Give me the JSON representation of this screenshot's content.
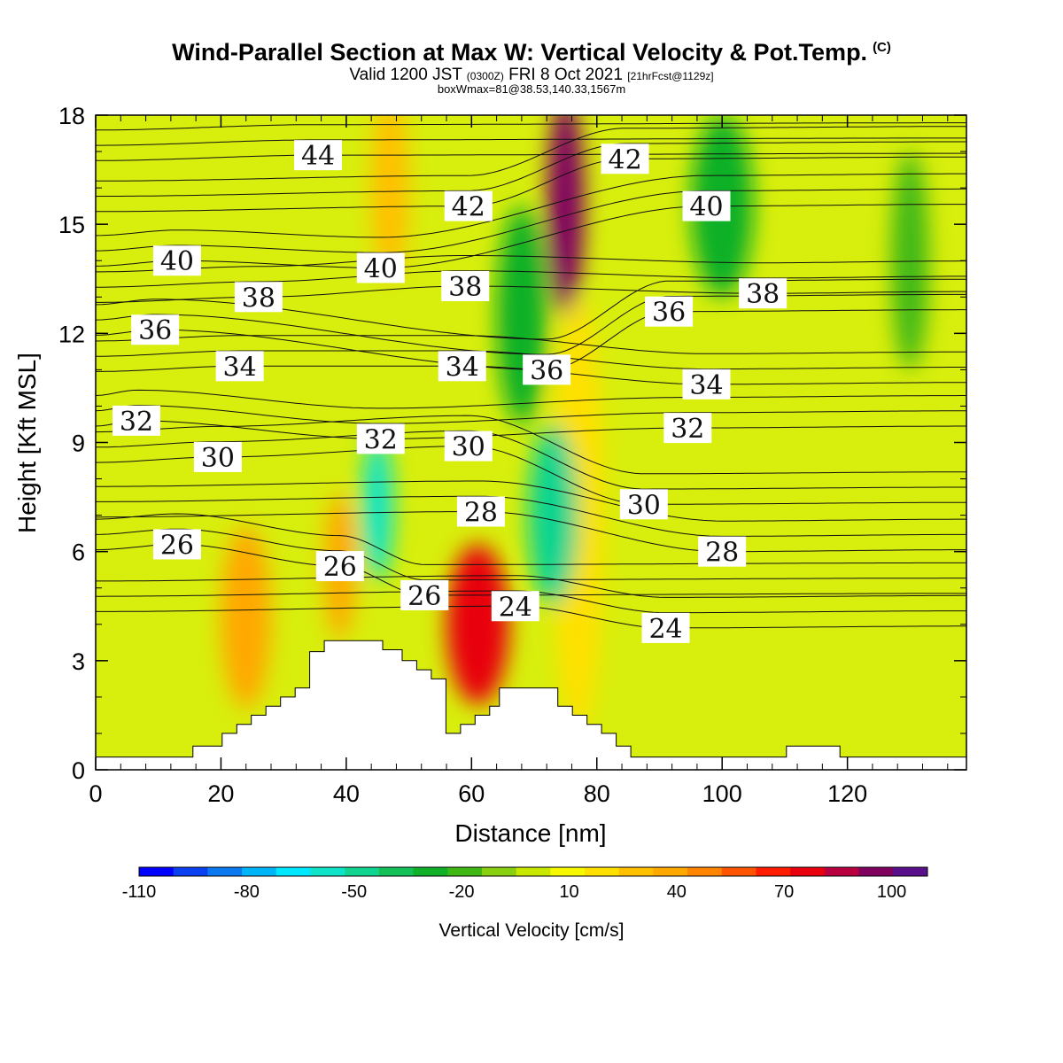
{
  "title": "Wind-Parallel Section at Max W: Vertical Velocity & Pot.Temp.",
  "title_mark": "(C)",
  "subtitle_main": "Valid 1200 JST",
  "subtitle_utc": "(0300Z)",
  "subtitle_date": "FRI 8 Oct 2021",
  "subtitle_fcst": "[21hrFcst@1129z]",
  "subtitle2": "boxWmax=81@38.53,140.33,1567m",
  "chart_data": {
    "type": "heatmap",
    "xlabel": "Distance [nm]",
    "ylabel": "Height [Kft MSL]",
    "xlim": [
      0,
      139
    ],
    "ylim": [
      0,
      18
    ],
    "x_ticks": [
      0,
      20,
      40,
      60,
      80,
      100,
      120
    ],
    "y_ticks": [
      0,
      3,
      6,
      9,
      12,
      15,
      18
    ],
    "grid": false,
    "colorbar": {
      "label": "Vertical Velocity [cm/s]",
      "placement": "bottom",
      "tick_labels": [
        -110,
        -80,
        -50,
        -20,
        10,
        40,
        70,
        100
      ],
      "levels": [
        -110,
        -100,
        -90,
        -80,
        -70,
        -60,
        -50,
        -40,
        -30,
        -20,
        -10,
        0,
        10,
        20,
        30,
        40,
        50,
        60,
        70,
        80,
        90,
        100,
        110
      ],
      "colors": [
        "#0000ff",
        "#0a40f0",
        "#0a78f0",
        "#00b4f8",
        "#00e8ff",
        "#10e4c8",
        "#10d490",
        "#14c058",
        "#10b028",
        "#40b814",
        "#88d010",
        "#c8e800",
        "#f8f800",
        "#ffe000",
        "#ffc000",
        "#ffa800",
        "#ff8400",
        "#ff5400",
        "#ff1c00",
        "#e80010",
        "#b80040",
        "#800060",
        "#5a108c"
      ]
    },
    "theta_contours": {
      "series_label": "Pot.Temp.",
      "levels": [
        24,
        26,
        28,
        30,
        32,
        34,
        36,
        38,
        40,
        42,
        44
      ],
      "labels": [
        {
          "text": "44",
          "x": 35.5,
          "y": 16.9
        },
        {
          "text": "42",
          "x": 59.5,
          "y": 15.5
        },
        {
          "text": "42",
          "x": 84.5,
          "y": 16.8
        },
        {
          "text": "40",
          "x": 13.0,
          "y": 14.0
        },
        {
          "text": "40",
          "x": 45.5,
          "y": 13.8
        },
        {
          "text": "40",
          "x": 97.5,
          "y": 15.5
        },
        {
          "text": "38",
          "x": 26.0,
          "y": 13.0
        },
        {
          "text": "38",
          "x": 59.0,
          "y": 13.3
        },
        {
          "text": "38",
          "x": 106.5,
          "y": 13.1
        },
        {
          "text": "36",
          "x": 9.5,
          "y": 12.1
        },
        {
          "text": "36",
          "x": 72.0,
          "y": 11.0
        },
        {
          "text": "36",
          "x": 91.5,
          "y": 12.6
        },
        {
          "text": "34",
          "x": 23.0,
          "y": 11.1
        },
        {
          "text": "34",
          "x": 58.5,
          "y": 11.1
        },
        {
          "text": "34",
          "x": 97.5,
          "y": 10.6
        },
        {
          "text": "32",
          "x": 6.5,
          "y": 9.6
        },
        {
          "text": "32",
          "x": 45.5,
          "y": 9.1
        },
        {
          "text": "32",
          "x": 94.5,
          "y": 9.4
        },
        {
          "text": "30",
          "x": 19.5,
          "y": 8.6
        },
        {
          "text": "30",
          "x": 59.5,
          "y": 8.9
        },
        {
          "text": "30",
          "x": 87.5,
          "y": 7.3
        },
        {
          "text": "28",
          "x": 61.5,
          "y": 7.1
        },
        {
          "text": "28",
          "x": 100.0,
          "y": 6.0
        },
        {
          "text": "26",
          "x": 13.0,
          "y": 6.2
        },
        {
          "text": "26",
          "x": 39.0,
          "y": 5.6
        },
        {
          "text": "26",
          "x": 52.5,
          "y": 4.8
        },
        {
          "text": "24",
          "x": 67.0,
          "y": 4.5
        },
        {
          "text": "24",
          "x": 91.0,
          "y": 3.9
        }
      ]
    },
    "terrain_heights": [
      0.35,
      0.35,
      0.35,
      0.35,
      0.35,
      0.35,
      0.35,
      0.35,
      0.35,
      0.35,
      0.35,
      0.35,
      0.35,
      0.35,
      0.35,
      0.35,
      0.35,
      0.35,
      0.35,
      0.35,
      0.65,
      0.65,
      0.65,
      0.65,
      0.65,
      0.65,
      1.0,
      1.0,
      1.0,
      1.25,
      1.25,
      1.25,
      1.5,
      1.5,
      1.5,
      1.75,
      1.75,
      1.75,
      2.0,
      2.0,
      2.0,
      2.25,
      2.25,
      2.25,
      3.25,
      3.25,
      3.25,
      3.55,
      3.55,
      3.55,
      3.55,
      3.55,
      3.55,
      3.55,
      3.55,
      3.55,
      3.55,
      3.55,
      3.55,
      3.3,
      3.3,
      3.3,
      3.3,
      3.0,
      3.0,
      3.0,
      2.75,
      2.75,
      2.75,
      2.5,
      2.5,
      2.5,
      1.0,
      1.0,
      1.0,
      1.25,
      1.25,
      1.25,
      1.5,
      1.5,
      1.5,
      1.75,
      1.75,
      2.25,
      2.25,
      2.25,
      2.25,
      2.25,
      2.25,
      2.25,
      2.25,
      2.25,
      2.25,
      2.25,
      2.25,
      1.75,
      1.75,
      1.75,
      1.5,
      1.5,
      1.5,
      1.25,
      1.25,
      1.25,
      1.0,
      1.0,
      1.0,
      0.65,
      0.65,
      0.65,
      0.35,
      0.35,
      0.35,
      0.35,
      0.35,
      0.35,
      0.35,
      0.35,
      0.35,
      0.35,
      0.35,
      0.35,
      0.35,
      0.35,
      0.35,
      0.35,
      0.35,
      0.35,
      0.35,
      0.35,
      0.35,
      0.35,
      0.35,
      0.35,
      0.35,
      0.35,
      0.35,
      0.35,
      0.35,
      0.35,
      0.35,
      0.35,
      0.65,
      0.65,
      0.65,
      0.65,
      0.65,
      0.65,
      0.65,
      0.65,
      0.65,
      0.65,
      0.65,
      0.35,
      0.35,
      0.35,
      0.35,
      0.35,
      0.35,
      0.35,
      0.35,
      0.35,
      0.35,
      0.35,
      0.35,
      0.35,
      0.35,
      0.35,
      0.35,
      0.35,
      0.35,
      0.35,
      0.35,
      0.35,
      0.35,
      0.35,
      0.35,
      0.35,
      0.35
    ],
    "vertical_velocity_features": [
      {
        "kind": "updraft",
        "x": 24,
        "y": 4.2,
        "rx": 4,
        "ry": 2.5,
        "w": 40
      },
      {
        "kind": "updraft",
        "x": 39,
        "y": 5.6,
        "rx": 2.5,
        "ry": 2.0,
        "w": 45
      },
      {
        "kind": "updraft",
        "x": 61,
        "y": 4.0,
        "rx": 5,
        "ry": 2.2,
        "w": 81
      },
      {
        "kind": "updraft",
        "x": 75,
        "y": 15.5,
        "rx": 3,
        "ry": 3,
        "w": 100
      },
      {
        "kind": "updraft",
        "x": 77,
        "y": 7.0,
        "rx": 4,
        "ry": 6,
        "w": 25
      },
      {
        "kind": "updraft",
        "x": 47,
        "y": 16.0,
        "rx": 3,
        "ry": 2.5,
        "w": 30
      },
      {
        "kind": "downdraft",
        "x": 45,
        "y": 7.2,
        "rx": 2.5,
        "ry": 2.0,
        "w": -60
      },
      {
        "kind": "downdraft",
        "x": 73,
        "y": 7.0,
        "rx": 4,
        "ry": 2.5,
        "w": -50
      },
      {
        "kind": "downdraft",
        "x": 68,
        "y": 12.5,
        "rx": 4,
        "ry": 3,
        "w": -30
      },
      {
        "kind": "downdraft",
        "x": 100,
        "y": 15.5,
        "rx": 5,
        "ry": 2.5,
        "w": -25
      },
      {
        "kind": "downdraft",
        "x": 130,
        "y": 14.0,
        "rx": 3,
        "ry": 3,
        "w": -20
      }
    ]
  }
}
